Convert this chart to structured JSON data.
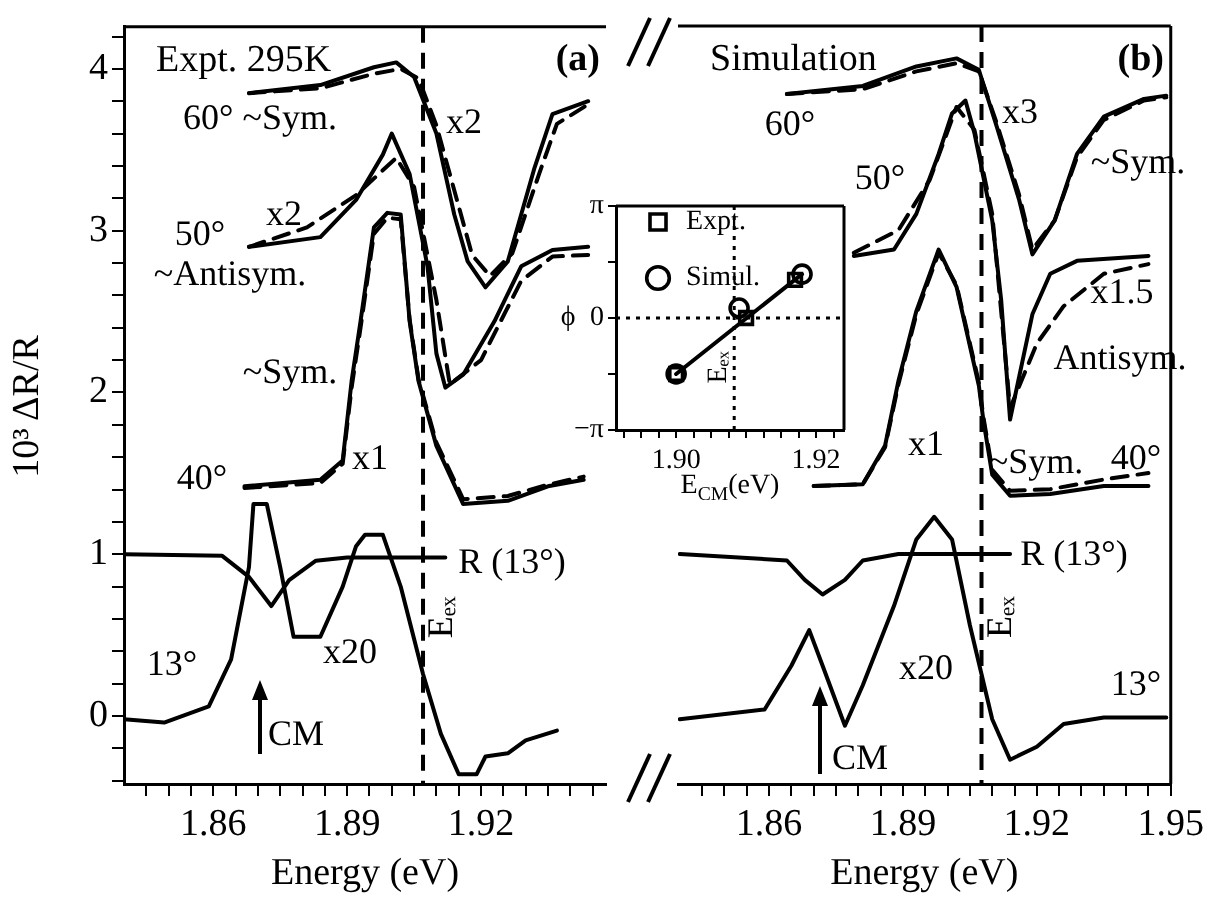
{
  "chart_data": [
    {
      "type": "line",
      "title": "Expt. 295K",
      "xlabel": "Energy (eV)",
      "ylabel": "10³ ΔR/R",
      "xlim": [
        1.84,
        1.948
      ],
      "xticks": [
        {
          "value": 1.845,
          "label": null
        },
        {
          "value": 1.85,
          "label": null
        },
        {
          "value": 1.855,
          "label": null
        },
        1.86,
        {
          "value": 1.865,
          "label": null
        },
        {
          "value": 1.87,
          "label": null
        },
        {
          "value": 1.875,
          "label": null
        },
        {
          "value": 1.88,
          "label": null
        },
        {
          "value": 1.885,
          "label": null
        },
        1.89,
        {
          "value": 1.895,
          "label": null
        },
        {
          "value": 1.9,
          "label": null
        },
        {
          "value": 1.905,
          "label": null
        },
        {
          "value": 1.91,
          "label": null
        },
        {
          "value": 1.915,
          "label": null
        },
        1.92,
        {
          "value": 1.925,
          "label": null
        },
        {
          "value": 1.93,
          "label": null
        },
        {
          "value": 1.935,
          "label": null
        },
        {
          "value": 1.94,
          "label": null
        },
        {
          "value": 1.945,
          "label": null
        }
      ],
      "ylim": [
        -0.42,
        4.26
      ],
      "yticks": [
        {
          "value": -0.4,
          "label": null
        },
        {
          "value": -0.2,
          "label": null
        },
        0,
        {
          "value": 0.2,
          "label": null
        },
        {
          "value": 0.4,
          "label": null
        },
        {
          "value": 0.6,
          "label": null
        },
        {
          "value": 0.8,
          "label": null
        },
        1,
        {
          "value": 1.2,
          "label": null
        },
        {
          "value": 1.4,
          "label": null
        },
        {
          "value": 1.6,
          "label": null
        },
        {
          "value": 1.8,
          "label": null
        },
        2,
        {
          "value": 2.2,
          "label": null
        },
        {
          "value": 2.4,
          "label": null
        },
        {
          "value": 2.6,
          "label": null
        },
        {
          "value": 2.8,
          "label": null
        },
        3,
        {
          "value": 3.2,
          "label": null
        },
        {
          "value": 3.4,
          "label": null
        },
        {
          "value": 3.6,
          "label": null
        },
        {
          "value": 3.8,
          "label": null
        },
        4,
        {
          "value": 4.2,
          "label": null
        }
      ],
      "series": [
        {
          "color": "#000000",
          "line_style": "solid",
          "x": [
            1.868,
            1.884,
            1.896,
            1.901,
            1.905,
            1.91,
            1.914,
            1.917,
            1.921,
            1.926,
            1.932,
            1.936,
            1.944
          ],
          "values": [
            3.85,
            3.9,
            4.01,
            4.04,
            3.95,
            3.6,
            3.1,
            2.81,
            2.65,
            2.81,
            3.39,
            3.72,
            3.8
          ]
        },
        {
          "color": "#000000",
          "line_style": "dashed",
          "x": [
            1.868,
            1.884,
            1.896,
            1.902,
            1.906,
            1.91,
            1.915,
            1.918,
            1.922,
            1.927,
            1.933,
            1.937,
            1.944
          ],
          "values": [
            3.85,
            3.88,
            3.97,
            4.0,
            3.94,
            3.65,
            3.15,
            2.85,
            2.72,
            2.86,
            3.35,
            3.66,
            3.78
          ]
        },
        {
          "color": "#000000",
          "line_style": "solid",
          "x": [
            1.868,
            1.884,
            1.892,
            1.898,
            1.9,
            1.904,
            1.908,
            1.91,
            1.912,
            1.916,
            1.923,
            1.929,
            1.936,
            1.944
          ],
          "values": [
            2.9,
            2.96,
            3.19,
            3.47,
            3.6,
            3.35,
            2.78,
            2.24,
            2.03,
            2.11,
            2.44,
            2.78,
            2.88,
            2.9
          ]
        },
        {
          "color": "#000000",
          "line_style": "dashed",
          "x": [
            1.868,
            1.881,
            1.892,
            1.901,
            1.905,
            1.91,
            1.913,
            1.92,
            1.929,
            1.936,
            1.944
          ],
          "values": [
            2.9,
            3.02,
            3.22,
            3.45,
            3.27,
            2.57,
            2.05,
            2.2,
            2.69,
            2.84,
            2.85
          ]
        },
        {
          "color": "#000000",
          "line_style": "solid",
          "x": [
            1.867,
            1.884,
            1.889,
            1.891,
            1.893,
            1.896,
            1.899,
            1.902,
            1.904,
            1.906,
            1.91,
            1.916,
            1.926,
            1.935,
            1.943
          ],
          "values": [
            1.42,
            1.46,
            1.58,
            2.07,
            2.44,
            3.02,
            3.11,
            3.1,
            2.44,
            2.07,
            1.67,
            1.31,
            1.33,
            1.42,
            1.46
          ]
        },
        {
          "color": "#000000",
          "line_style": "dashed",
          "x": [
            1.867,
            1.884,
            1.889,
            1.891,
            1.893,
            1.896,
            1.899,
            1.902,
            1.904,
            1.906,
            1.91,
            1.916,
            1.926,
            1.935,
            1.943
          ],
          "values": [
            1.41,
            1.44,
            1.56,
            2.03,
            2.4,
            2.98,
            3.08,
            3.07,
            2.45,
            2.08,
            1.69,
            1.34,
            1.36,
            1.43,
            1.48
          ]
        },
        {
          "color": "#000000",
          "line_style": "solid",
          "x": [
            1.84,
            1.862,
            1.868,
            1.873,
            1.877,
            1.883,
            1.89,
            1.912
          ],
          "values": [
            1.0,
            0.99,
            0.86,
            0.68,
            0.84,
            0.96,
            0.98,
            0.98
          ]
        },
        {
          "color": "#000000",
          "line_style": "solid",
          "x": [
            1.84,
            1.849,
            1.859,
            1.864,
            1.868,
            1.869,
            1.872,
            1.875,
            1.878,
            1.884,
            1.889,
            1.892,
            1.894,
            1.898,
            1.902,
            1.907,
            1.911,
            1.915,
            1.919,
            1.921,
            1.926,
            1.93,
            1.937
          ],
          "values": [
            -0.02,
            -0.04,
            0.06,
            0.35,
            0.92,
            1.31,
            1.31,
            0.92,
            0.49,
            0.49,
            0.8,
            1.05,
            1.12,
            1.12,
            0.8,
            0.26,
            -0.11,
            -0.36,
            -0.36,
            -0.25,
            -0.23,
            -0.15,
            -0.09
          ]
        }
      ],
      "ref_lines": [
        {
          "axis": "x",
          "value": 1.907,
          "label": "Eₑₓ",
          "line_style": "dashed"
        }
      ],
      "annotations": [
        "(a)",
        "60° ~Sym.",
        "x2",
        "x2",
        "50°",
        "~Antisym.",
        "~Sym.",
        "40°",
        "x1",
        "R (13°)",
        "13°",
        "x20",
        "CM"
      ]
    },
    {
      "type": "line",
      "title": "Simulation",
      "xlabel": "Energy (eV)",
      "tick_labels": "x",
      "xlim": [
        1.8396,
        1.95
      ],
      "xticks": [
        {
          "value": 1.845,
          "label": null
        },
        {
          "value": 1.85,
          "label": null
        },
        {
          "value": 1.855,
          "label": null
        },
        1.86,
        {
          "value": 1.865,
          "label": null
        },
        {
          "value": 1.87,
          "label": null
        },
        {
          "value": 1.875,
          "label": null
        },
        {
          "value": 1.88,
          "label": null
        },
        {
          "value": 1.885,
          "label": null
        },
        1.89,
        {
          "value": 1.895,
          "label": null
        },
        {
          "value": 1.9,
          "label": null
        },
        {
          "value": 1.905,
          "label": null
        },
        {
          "value": 1.91,
          "label": null
        },
        {
          "value": 1.915,
          "label": null
        },
        1.92,
        {
          "value": 1.925,
          "label": null
        },
        {
          "value": 1.93,
          "label": null
        },
        {
          "value": 1.935,
          "label": null
        },
        {
          "value": 1.94,
          "label": null
        },
        {
          "value": 1.945,
          "label": null
        },
        1.95
      ],
      "ylim": [
        -0.42,
        4.26
      ],
      "series": [
        {
          "color": "#000000",
          "line_style": "solid",
          "x": [
            1.864,
            1.881,
            1.893,
            1.902,
            1.907,
            1.911,
            1.916,
            1.919,
            1.924,
            1.929,
            1.935,
            1.944,
            1.949
          ],
          "values": [
            3.84,
            3.89,
            4.01,
            4.06,
            3.99,
            3.64,
            3.19,
            2.85,
            3.06,
            3.47,
            3.7,
            3.81,
            3.83
          ]
        },
        {
          "color": "#000000",
          "line_style": "dashed",
          "x": [
            1.864,
            1.881,
            1.893,
            1.902,
            1.907,
            1.911,
            1.916,
            1.919,
            1.924,
            1.929,
            1.935,
            1.944,
            1.949
          ],
          "values": [
            3.84,
            3.87,
            3.98,
            4.03,
            3.98,
            3.66,
            3.22,
            2.88,
            3.06,
            3.45,
            3.68,
            3.8,
            3.82
          ]
        },
        {
          "color": "#000000",
          "line_style": "solid",
          "x": [
            1.879,
            1.888,
            1.893,
            1.898,
            1.901,
            1.904,
            1.906,
            1.91,
            1.912,
            1.914,
            1.919,
            1.923,
            1.929,
            1.945
          ],
          "values": [
            2.84,
            2.88,
            3.1,
            3.47,
            3.72,
            3.8,
            3.6,
            3.06,
            2.57,
            1.83,
            2.48,
            2.73,
            2.81,
            2.84
          ]
        },
        {
          "color": "#000000",
          "line_style": "dashed",
          "x": [
            1.879,
            1.889,
            1.896,
            1.902,
            1.906,
            1.91,
            1.914,
            1.92,
            1.926,
            1.935,
            1.945
          ],
          "values": [
            2.86,
            3.0,
            3.31,
            3.76,
            3.62,
            3.1,
            1.9,
            2.3,
            2.53,
            2.73,
            2.79
          ]
        },
        {
          "color": "#000000",
          "line_style": "solid",
          "x": [
            1.87,
            1.881,
            1.886,
            1.889,
            1.893,
            1.898,
            1.902,
            1.907,
            1.908,
            1.91,
            1.914,
            1.923,
            1.935,
            1.945
          ],
          "values": [
            1.42,
            1.43,
            1.67,
            2.07,
            2.5,
            2.88,
            2.65,
            2.04,
            1.83,
            1.49,
            1.36,
            1.37,
            1.42,
            1.42
          ]
        },
        {
          "color": "#000000",
          "line_style": "dashed",
          "x": [
            1.87,
            1.881,
            1.886,
            1.889,
            1.893,
            1.898,
            1.902,
            1.907,
            1.908,
            1.91,
            1.914,
            1.923,
            1.935,
            1.945
          ],
          "values": [
            1.42,
            1.43,
            1.66,
            2.05,
            2.48,
            2.86,
            2.66,
            2.06,
            1.85,
            1.52,
            1.39,
            1.4,
            1.46,
            1.5
          ]
        },
        {
          "color": "#000000",
          "line_style": "solid",
          "x": [
            1.84,
            1.864,
            1.868,
            1.872,
            1.877,
            1.881,
            1.889,
            1.914
          ],
          "values": [
            1.0,
            0.96,
            0.84,
            0.75,
            0.84,
            0.96,
            1.0,
            1.0
          ]
        },
        {
          "color": "#000000",
          "line_style": "solid",
          "x": [
            1.84,
            1.859,
            1.865,
            1.869,
            1.872,
            1.877,
            1.881,
            1.888,
            1.893,
            1.897,
            1.901,
            1.905,
            1.91,
            1.914,
            1.92,
            1.926,
            1.935,
            1.949
          ],
          "values": [
            -0.02,
            0.04,
            0.31,
            0.53,
            0.31,
            -0.06,
            0.19,
            0.68,
            1.09,
            1.23,
            1.09,
            0.56,
            -0.02,
            -0.27,
            -0.19,
            -0.05,
            -0.01,
            -0.01
          ]
        }
      ],
      "ref_lines": [
        {
          "axis": "x",
          "value": 1.9076,
          "label": "Eₑₓ",
          "line_style": "dashed"
        }
      ],
      "annotations": [
        "(b)",
        "60°",
        "x3",
        "~Sym.",
        "50°",
        "x1.5",
        "Antisym.",
        "x1",
        "~Sym.",
        "40°",
        "R (13°)",
        "x20",
        "13°",
        "CM"
      ]
    },
    {
      "type": "scatter",
      "xlabel": "E$_{CM}$(eV)",
      "ylabel": "ϕ",
      "legend": "top left",
      "xlim": [
        1.8914,
        1.924
      ],
      "xticks": [
        {
          "value": 1.8925,
          "label": null
        },
        {
          "value": 1.895,
          "label": null
        },
        {
          "value": 1.8975,
          "label": null
        },
        {
          "value": 1.9,
          "label": "1.90"
        },
        {
          "value": 1.9025,
          "label": null
        },
        {
          "value": 1.905,
          "label": null
        },
        {
          "value": 1.9075,
          "label": null
        },
        {
          "value": 1.91,
          "label": null
        },
        {
          "value": 1.9125,
          "label": null
        },
        {
          "value": 1.915,
          "label": null
        },
        {
          "value": 1.9175,
          "label": null
        },
        {
          "value": 1.92,
          "label": "1.92"
        },
        {
          "value": 1.9225,
          "label": null
        }
      ],
      "ylim": [
        -3.1416,
        3.1416
      ],
      "yticks": [
        {
          "value": -3.1416,
          "label": "−π"
        },
        {
          "value": -1.5708,
          "label": null
        },
        0,
        {
          "value": 1.5708,
          "label": null
        },
        {
          "value": 3.1416,
          "label": "π"
        }
      ],
      "series": [
        {
          "type": "line",
          "color": "#000000",
          "marker": "none",
          "x": [
            1.9,
            1.918
          ],
          "values": [
            -1.57,
            1.23
          ]
        },
        {
          "name": "Expt.",
          "color": "#000000",
          "marker": "square",
          "x": [
            1.9,
            1.91,
            1.917
          ],
          "values": [
            -1.57,
            0,
            1.07
          ]
        },
        {
          "name": "Simul.",
          "color": "#000000",
          "marker": "circle",
          "x": [
            1.9,
            1.909,
            1.918
          ],
          "values": [
            -1.57,
            0.28,
            1.23
          ]
        }
      ],
      "ref_lines": [
        {
          "axis": "y",
          "value": 0,
          "line_style": "dotted"
        },
        {
          "axis": "x",
          "value": 1.9083,
          "label": "Eₑₓ",
          "line_style": "dotted"
        }
      ]
    }
  ]
}
